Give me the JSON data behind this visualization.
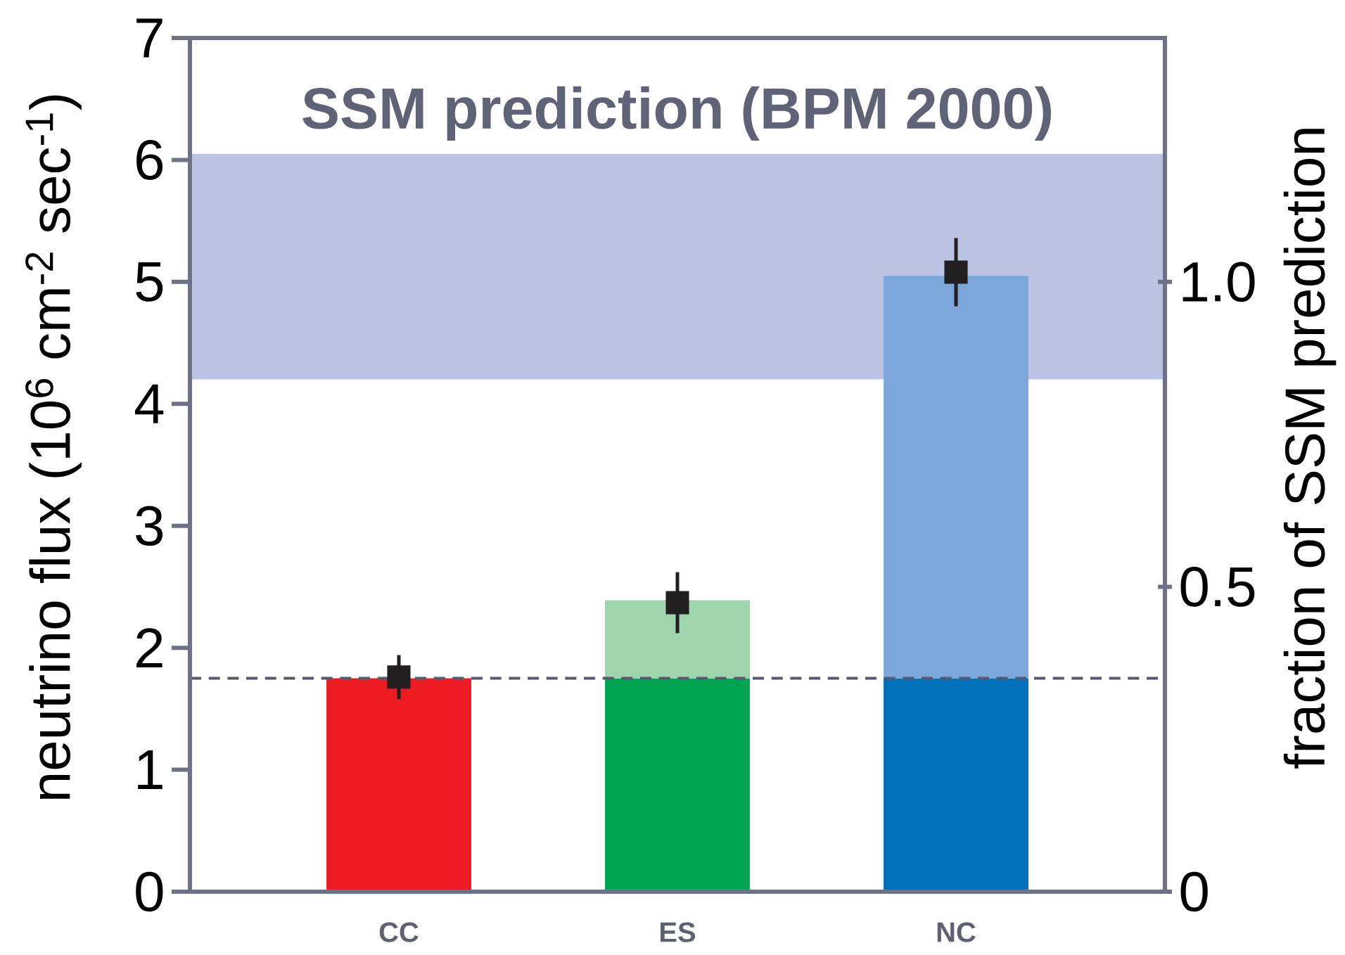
{
  "chart_data": {
    "type": "bar",
    "stacked": true,
    "categories": [
      "CC",
      "ES",
      "NC"
    ],
    "series": [
      {
        "values": [
          1.75,
          1.75,
          1.75
        ],
        "colors": [
          "#ed1c24",
          "#00a551",
          "#0070bb"
        ]
      },
      {
        "values": [
          null,
          0.64,
          3.3
        ],
        "colors": [
          null,
          "#9fd5ac",
          "#7ba7da"
        ]
      },
      {
        "type": "scatter",
        "values": [
          1.76,
          2.37,
          5.08
        ],
        "errors": [
          0.18,
          0.25,
          0.28
        ],
        "color": "#231f20",
        "marker": "square"
      }
    ],
    "ylabel": "neutrino flux (10$^{6}$ cm$^{-2}$ sec$^{-1}$)",
    "y2label": "fraction of SSM prediction",
    "ylim": [
      0,
      7
    ],
    "yticks": [
      0,
      1,
      2,
      3,
      4,
      5,
      6,
      7
    ],
    "y2lim": [
      0,
      1.4
    ],
    "y2ticks": [
      0,
      0.5,
      {
        "value": 1,
        "label": "1.0"
      }
    ],
    "bands": [
      {
        "axis": "y",
        "from": 4.2,
        "to": 6.05,
        "label": "SSM prediction (BPM 2000)",
        "color": "#bcc3e2"
      }
    ],
    "ref_lines": [
      {
        "axis": "y",
        "value": 1.75,
        "line_style": "dashed",
        "color": "#555a70"
      }
    ]
  }
}
